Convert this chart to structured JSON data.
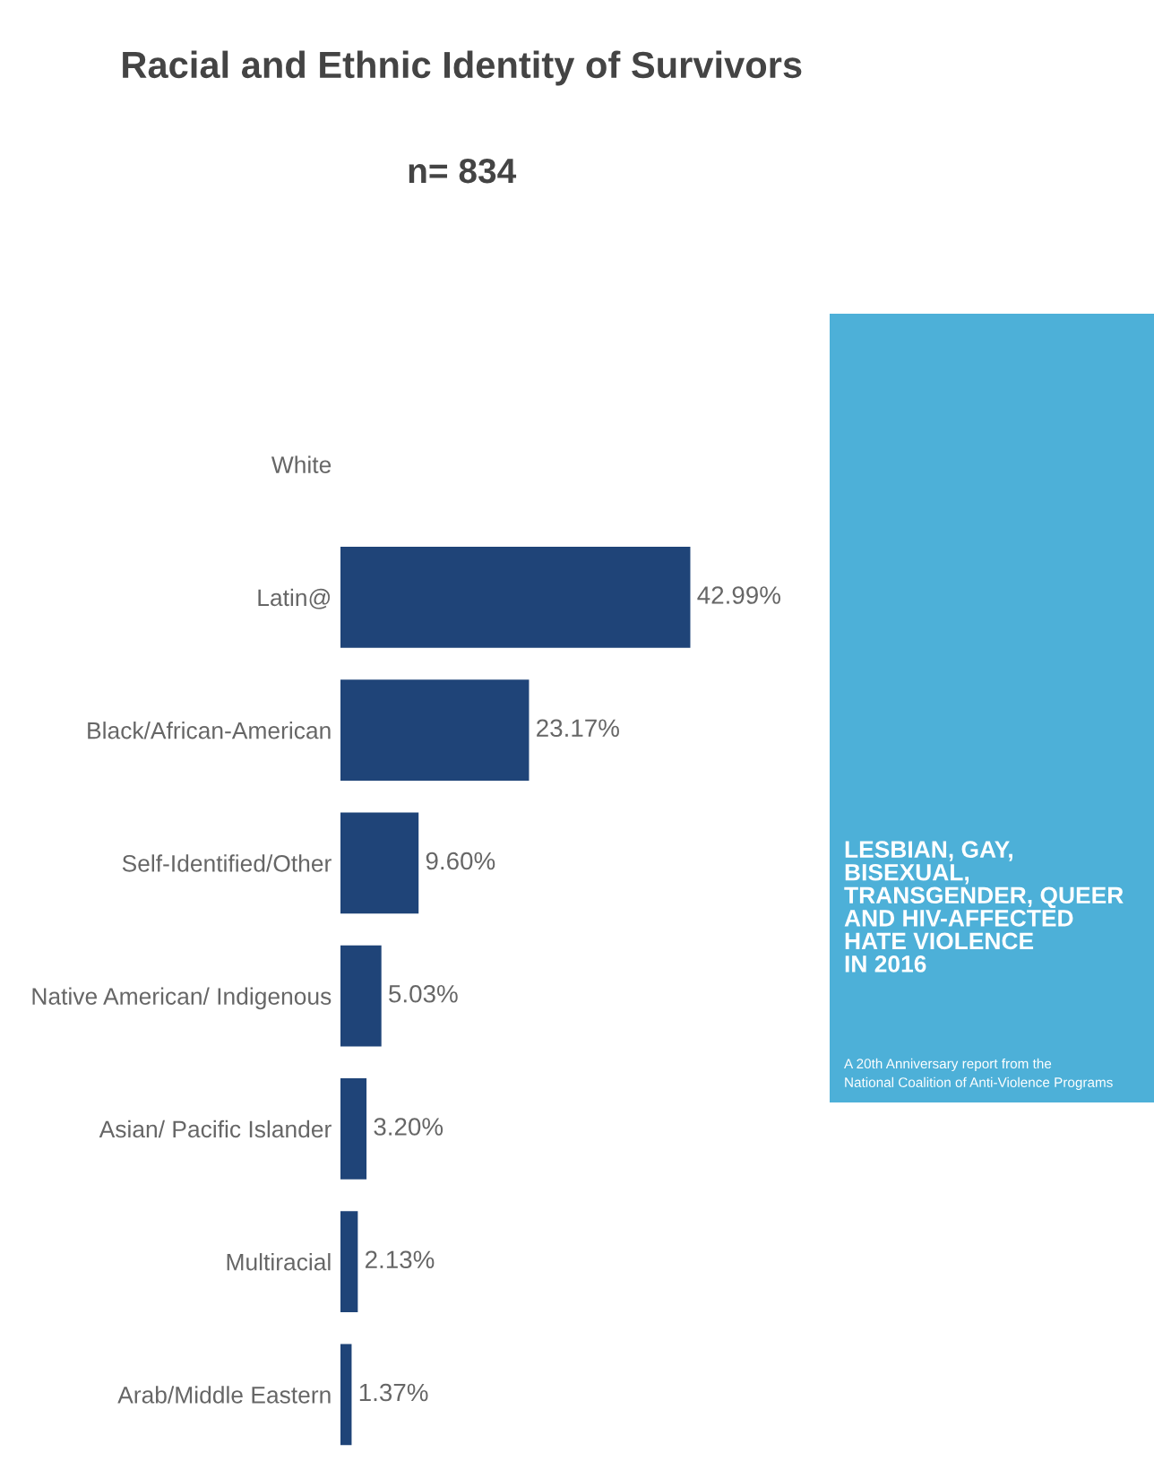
{
  "chart_data": {
    "type": "bar",
    "orientation": "horizontal",
    "title": "Racial and Ethnic Identity of Survivors",
    "subtitle": "n= 834",
    "categories": [
      "White",
      "Latin@",
      "Black/African-American",
      "Self-Identified/Other",
      "Native American/ Indigenous",
      "Asian/ Pacific Islander",
      "Multiracial",
      "Arab/Middle Eastern"
    ],
    "values": [
      null,
      42.99,
      23.17,
      9.6,
      5.03,
      3.2,
      2.13,
      1.37
    ],
    "value_labels": [
      null,
      "42.99%",
      "23.17%",
      "9.60%",
      "5.03%",
      "3.20%",
      "2.13%",
      "1.37%"
    ],
    "color": "#1f4478",
    "tick_labels": "y",
    "annotations": [
      "LESBIAN, GAY,\nBISEXUAL,\nTRANSGENDER, QUEER\nAND HIV-AFFECTED\nHATE VIOLENCE\nIN 2016",
      "A 20th Anniversary report from the\nNational Coalition of Anti-Violence Programs"
    ]
  }
}
